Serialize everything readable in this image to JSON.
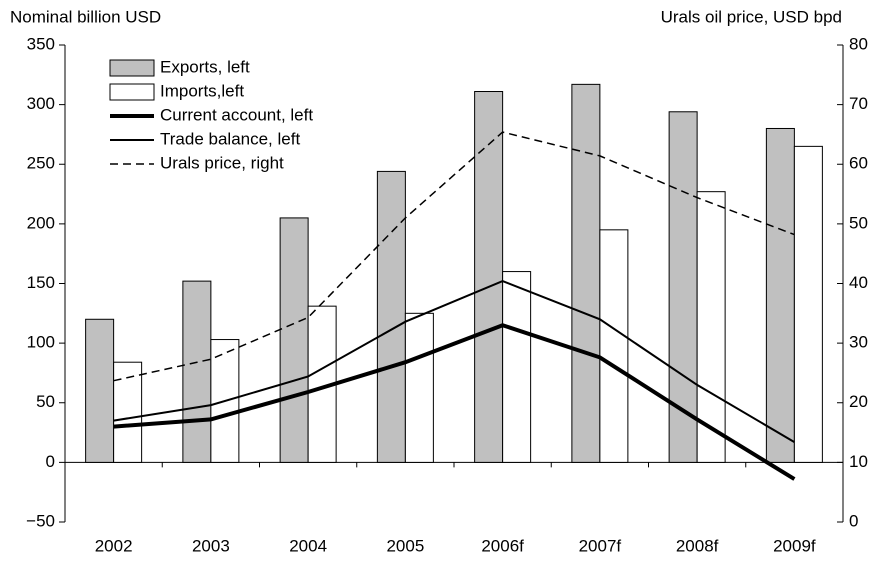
{
  "chart_data": {
    "type": "bar-line",
    "y_label": "Nominal billion USD",
    "y2_label": "Urals oil price, USD bpd",
    "categories": [
      "2002",
      "2003",
      "2004",
      "2005",
      "2006f",
      "2007f",
      "2008f",
      "2009f"
    ],
    "series": [
      {
        "name": "Exports, left",
        "type": "bar",
        "color": "#c0c0c0",
        "values": [
          120,
          152,
          205,
          244,
          311,
          317,
          294,
          280
        ]
      },
      {
        "name": "Imports,left",
        "type": "bar",
        "color": "#ffffff",
        "values": [
          84,
          103,
          131,
          125,
          160,
          195,
          227,
          265
        ]
      },
      {
        "name": "Current account, left",
        "type": "line",
        "color": "#000000",
        "width": 4,
        "values": [
          30,
          36,
          59,
          84,
          115,
          88,
          36,
          -14
        ]
      },
      {
        "name": "Trade balance, left",
        "type": "line",
        "color": "#000000",
        "width": 2,
        "values": [
          35,
          48,
          72,
          118,
          152,
          120,
          65,
          17
        ]
      },
      {
        "name": "Urals price, right",
        "type": "line",
        "color": "#000000",
        "width": 1.5,
        "dashed": true,
        "axis": "y2",
        "values": [
          23.7,
          27.3,
          34.3,
          51,
          65.4,
          61.4,
          54.4,
          48.2
        ]
      }
    ],
    "ylim": [
      -50,
      350
    ],
    "yticks": [
      {
        "value": -50,
        "label": "−50"
      },
      0,
      50,
      100,
      150,
      200,
      250,
      300,
      350
    ],
    "y2lim": [
      0,
      80
    ],
    "y2ticks": [
      0,
      10,
      20,
      30,
      40,
      50,
      60,
      70,
      80
    ],
    "legend": "upper left"
  }
}
